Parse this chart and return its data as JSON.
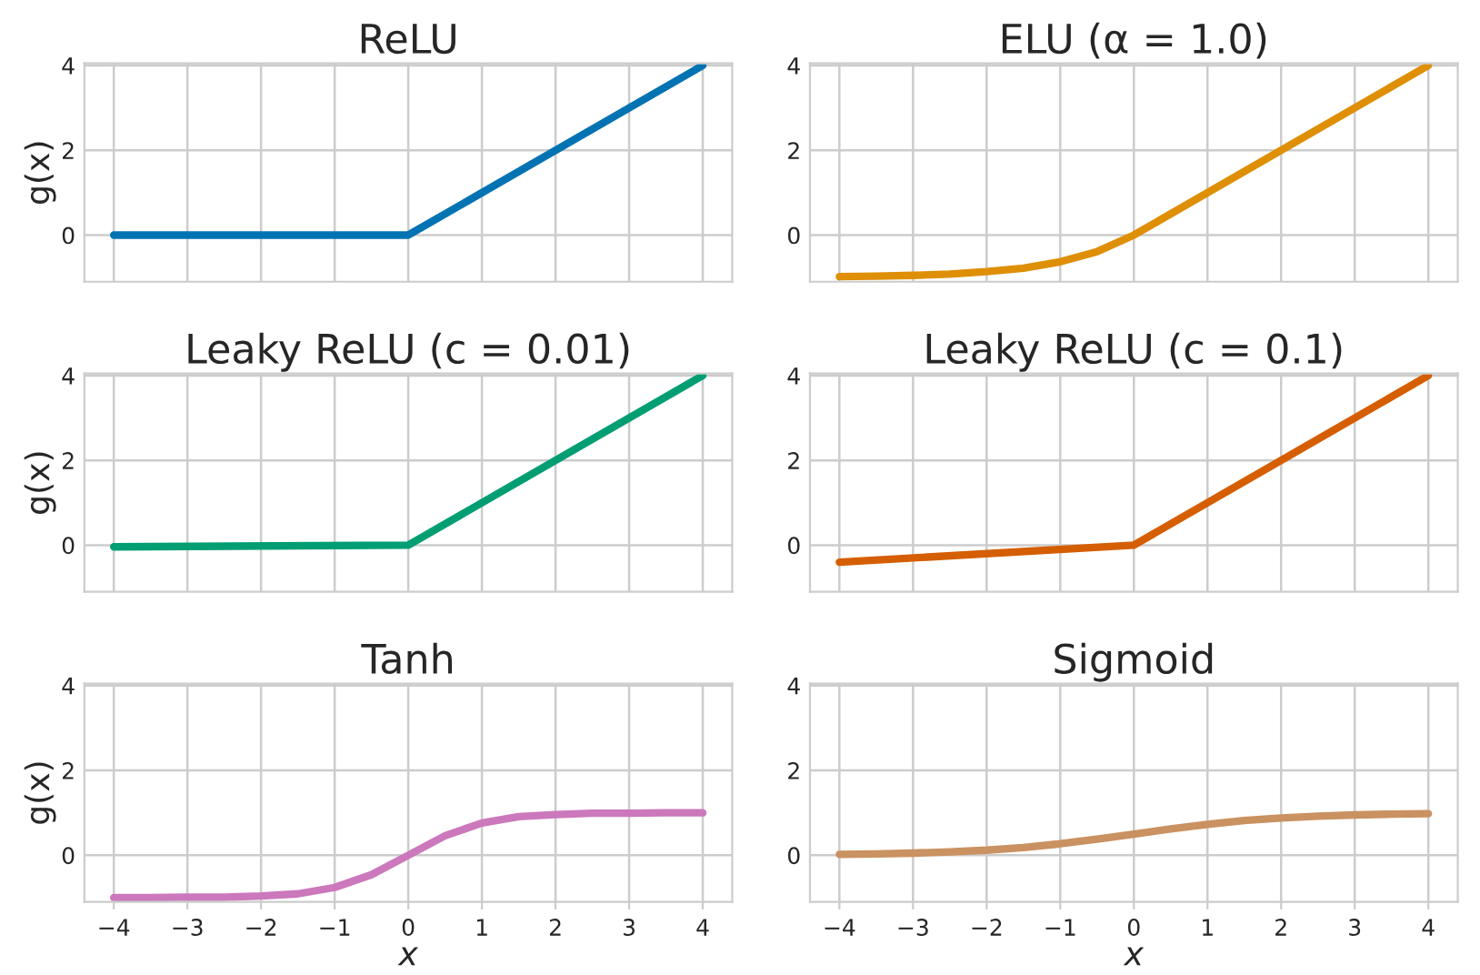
{
  "chart_data": [
    {
      "type": "line",
      "title": "ReLU",
      "ylabel": "g(x)",
      "x": [
        -4,
        0,
        4
      ],
      "series": [
        {
          "color": "#0173b2",
          "values": [
            0,
            0,
            4
          ]
        }
      ],
      "xlim": [
        -4.4,
        4.4
      ],
      "ylim": [
        -1.1,
        4.05
      ],
      "xticks": [
        -4,
        -3,
        -2,
        -1,
        0,
        1,
        2,
        3,
        4
      ],
      "yticks": [
        0,
        2,
        4
      ],
      "grid": true,
      "tick_labels": "y"
    },
    {
      "type": "line",
      "title": "ELU (α = 1.0)",
      "x": [
        -4,
        -3.5,
        -3,
        -2.5,
        -2,
        -1.5,
        -1,
        -0.5,
        0,
        4
      ],
      "series": [
        {
          "color": "#de8f05",
          "values": [
            -0.98,
            -0.97,
            -0.95,
            -0.92,
            -0.86,
            -0.78,
            -0.63,
            -0.39,
            0,
            4
          ]
        }
      ],
      "xlim": [
        -4.4,
        4.4
      ],
      "ylim": [
        -1.1,
        4.05
      ],
      "xticks": [
        -4,
        -3,
        -2,
        -1,
        0,
        1,
        2,
        3,
        4
      ],
      "yticks": [
        0,
        2,
        4
      ],
      "grid": true,
      "tick_labels": "y"
    },
    {
      "type": "line",
      "title": "Leaky ReLU (c = 0.01)",
      "ylabel": "g(x)",
      "x": [
        -4,
        0,
        4
      ],
      "series": [
        {
          "color": "#029e73",
          "values": [
            -0.04,
            0,
            4
          ]
        }
      ],
      "xlim": [
        -4.4,
        4.4
      ],
      "ylim": [
        -1.1,
        4.05
      ],
      "xticks": [
        -4,
        -3,
        -2,
        -1,
        0,
        1,
        2,
        3,
        4
      ],
      "yticks": [
        0,
        2,
        4
      ],
      "grid": true,
      "tick_labels": "y"
    },
    {
      "type": "line",
      "title": "Leaky ReLU (c = 0.1)",
      "x": [
        -4,
        0,
        4
      ],
      "series": [
        {
          "color": "#d55e00",
          "values": [
            -0.4,
            0,
            4
          ]
        }
      ],
      "xlim": [
        -4.4,
        4.4
      ],
      "ylim": [
        -1.1,
        4.05
      ],
      "xticks": [
        -4,
        -3,
        -2,
        -1,
        0,
        1,
        2,
        3,
        4
      ],
      "yticks": [
        0,
        2,
        4
      ],
      "grid": true,
      "tick_labels": "y"
    },
    {
      "type": "line",
      "title": "Tanh",
      "xlabel": "x",
      "ylabel": "g(x)",
      "x": [
        -4,
        -3.5,
        -3,
        -2.5,
        -2,
        -1.5,
        -1,
        -0.5,
        0,
        0.5,
        1,
        1.5,
        2,
        2.5,
        3,
        3.5,
        4
      ],
      "series": [
        {
          "color": "#cc78bc",
          "values": [
            -1.0,
            -1.0,
            -0.99,
            -0.99,
            -0.96,
            -0.91,
            -0.76,
            -0.46,
            0,
            0.46,
            0.76,
            0.91,
            0.96,
            0.99,
            0.99,
            1.0,
            1.0
          ]
        }
      ],
      "xlim": [
        -4.4,
        4.4
      ],
      "ylim": [
        -1.1,
        4.05
      ],
      "xticks": [
        -4,
        -3,
        -2,
        -1,
        0,
        1,
        2,
        3,
        4
      ],
      "yticks": [
        0,
        2,
        4
      ],
      "grid": true
    },
    {
      "type": "line",
      "title": "Sigmoid",
      "xlabel": "x",
      "x": [
        -4,
        -3.5,
        -3,
        -2.5,
        -2,
        -1.5,
        -1,
        -0.5,
        0,
        0.5,
        1,
        1.5,
        2,
        2.5,
        3,
        3.5,
        4
      ],
      "series": [
        {
          "color": "#ca9161",
          "values": [
            0.02,
            0.03,
            0.05,
            0.08,
            0.12,
            0.18,
            0.27,
            0.38,
            0.5,
            0.62,
            0.73,
            0.82,
            0.88,
            0.92,
            0.95,
            0.97,
            0.98
          ]
        }
      ],
      "xlim": [
        -4.4,
        4.4
      ],
      "ylim": [
        -1.1,
        4.05
      ],
      "xticks": [
        -4,
        -3,
        -2,
        -1,
        0,
        1,
        2,
        3,
        4
      ],
      "yticks": [
        0,
        2,
        4
      ],
      "grid": true
    }
  ]
}
